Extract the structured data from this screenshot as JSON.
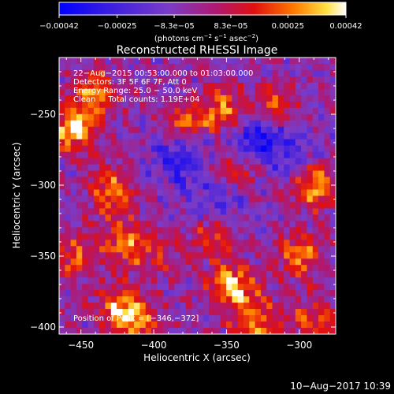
{
  "colorbar": {
    "ticks": [
      "−0.00042",
      "−0.00025",
      "−8.3e−05",
      "8.3e−05",
      "0.00025",
      "0.00042"
    ],
    "range": [
      -0.00042,
      0.00042
    ],
    "units_prefix": "(photons cm",
    "units_exp1": "−2",
    "units_mid": " s",
    "units_exp2": "−1",
    "units_mid2": " asec",
    "units_exp3": "−2",
    "units_suffix": ")"
  },
  "image": {
    "title": "Reconstructed RHESSI Image",
    "info_lines": [
      "22−Aug−2015 00:53:00.000 to 01:03:00.000",
      "Detectors: 3F 5F 6F 7F, Att 0",
      "Energy Range: 25.0 − 50.0 keV",
      "Clean     Total counts: 1.19E+04"
    ],
    "peak_label": "Position of Peak = [−346,−372]"
  },
  "footer": {
    "timestamp": "10−Aug−2017 10:39"
  },
  "chart_data": {
    "type": "heatmap",
    "title": "Reconstructed RHESSI Image",
    "xlabel": "Heliocentric X (arcsec)",
    "ylabel": "Heliocentric Y (arcsec)",
    "xlim": [
      -465,
      -275
    ],
    "ylim": [
      -405,
      -210
    ],
    "x_ticks": [
      -450,
      -400,
      -350,
      -300
    ],
    "x_tick_labels": [
      "−450",
      "−400",
      "−350",
      "−300"
    ],
    "y_ticks": [
      -400,
      -350,
      -300,
      -250
    ],
    "y_tick_labels": [
      "−400",
      "−350",
      "−300",
      "−250"
    ],
    "colorscale": "hot-blue",
    "colors": {
      "background": "#000000",
      "low": "#0000ff",
      "mid_low": "#7a3cc8",
      "mid_high": "#d0102a",
      "high": "#ffffff"
    },
    "grid_cols": 48,
    "grid_rows": 44,
    "hotspots": [
      {
        "x": -455,
        "y": -260,
        "value": 0.00042
      },
      {
        "x": -440,
        "y": -235,
        "value": 0.0003
      },
      {
        "x": -428,
        "y": -305,
        "value": 0.00032
      },
      {
        "x": -420,
        "y": -340,
        "value": 0.0003
      },
      {
        "x": -425,
        "y": -385,
        "value": 0.00028
      },
      {
        "x": -412,
        "y": -395,
        "value": 0.0003
      },
      {
        "x": -378,
        "y": -255,
        "value": 0.00028
      },
      {
        "x": -352,
        "y": -248,
        "value": 0.00032
      },
      {
        "x": -318,
        "y": -245,
        "value": 0.0003
      },
      {
        "x": -340,
        "y": -290,
        "value": 0.00022
      },
      {
        "x": -360,
        "y": -335,
        "value": 0.00026
      },
      {
        "x": -346,
        "y": -372,
        "value": 0.00042
      },
      {
        "x": -330,
        "y": -395,
        "value": 0.0003
      },
      {
        "x": -290,
        "y": -300,
        "value": 0.0004
      },
      {
        "x": -300,
        "y": -350,
        "value": 0.0003
      },
      {
        "x": -290,
        "y": -395,
        "value": 0.00026
      },
      {
        "x": -398,
        "y": -350,
        "value": 0.00016
      },
      {
        "x": -455,
        "y": -350,
        "value": 0.00024
      }
    ],
    "coldspots": [
      {
        "x": -330,
        "y": -265,
        "value": -0.0003
      },
      {
        "x": -385,
        "y": -280,
        "value": -0.00025
      },
      {
        "x": -355,
        "y": -315,
        "value": -0.00018
      },
      {
        "x": -305,
        "y": -280,
        "value": -0.00018
      }
    ]
  }
}
